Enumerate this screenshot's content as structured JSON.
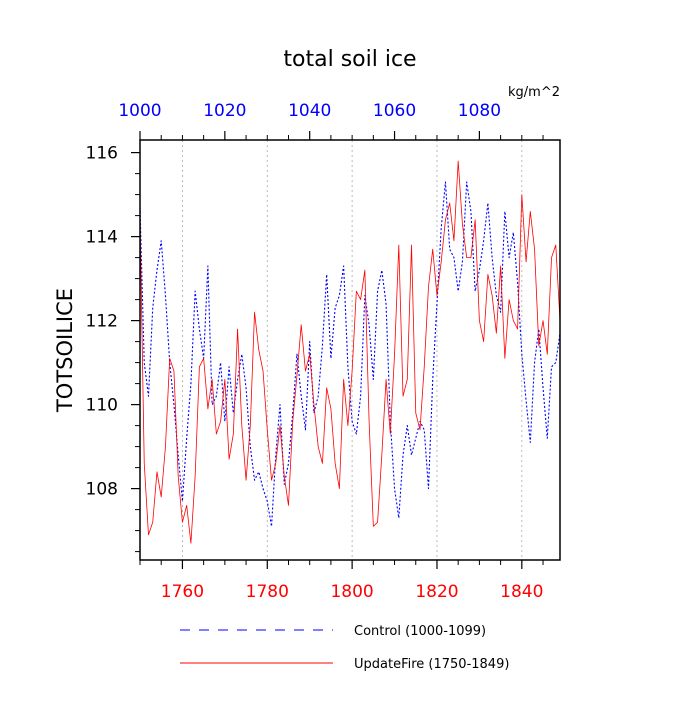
{
  "chart_data": {
    "type": "line",
    "title": "total soil ice",
    "ylabel": "TOTSOILICE",
    "units": "kg/m^2",
    "ylim": [
      106.3,
      116.3
    ],
    "y_ticks": [
      108,
      110,
      112,
      114,
      116
    ],
    "y_tick_labels": [
      "108",
      "110",
      "112",
      "114",
      "116"
    ],
    "grid": "vertical dotted at bottom-axis major ticks",
    "legend_position": "bottom",
    "colors": {
      "control": "#0000ff",
      "update_fire": "#ff0000",
      "top_axis_labels": "#0000ff",
      "bottom_axis_labels": "#ff0000",
      "grid": "#aaaaaa"
    },
    "top_axis": {
      "range": [
        1000,
        1099
      ],
      "ticks": [
        1000,
        1020,
        1040,
        1060,
        1080
      ],
      "tick_labels": [
        "1000",
        "1020",
        "1040",
        "1060",
        "1080"
      ]
    },
    "bottom_axis": {
      "range": [
        1750,
        1849
      ],
      "ticks": [
        1760,
        1780,
        1800,
        1820,
        1840
      ],
      "tick_labels": [
        "1760",
        "1780",
        "1800",
        "1820",
        "1840"
      ]
    },
    "series": [
      {
        "name": "Control (1000-1099)",
        "axis": "top",
        "style": "dashed",
        "x": [
          1000,
          1001,
          1002,
          1003,
          1004,
          1005,
          1006,
          1007,
          1008,
          1009,
          1010,
          1011,
          1012,
          1013,
          1014,
          1015,
          1016,
          1017,
          1018,
          1019,
          1020,
          1021,
          1022,
          1023,
          1024,
          1025,
          1026,
          1027,
          1028,
          1029,
          1030,
          1031,
          1032,
          1033,
          1034,
          1035,
          1036,
          1037,
          1038,
          1039,
          1040,
          1041,
          1042,
          1043,
          1044,
          1045,
          1046,
          1047,
          1048,
          1049,
          1050,
          1051,
          1052,
          1053,
          1054,
          1055,
          1056,
          1057,
          1058,
          1059,
          1060,
          1061,
          1062,
          1063,
          1064,
          1065,
          1066,
          1067,
          1068,
          1069,
          1070,
          1071,
          1072,
          1073,
          1074,
          1075,
          1076,
          1077,
          1078,
          1079,
          1080,
          1081,
          1082,
          1083,
          1084,
          1085,
          1086,
          1087,
          1088,
          1089,
          1090,
          1091,
          1092,
          1093,
          1094,
          1095,
          1096,
          1097,
          1098,
          1099
        ],
        "y": [
          114.7,
          111.0,
          110.2,
          112.3,
          113.2,
          113.9,
          112.6,
          111.0,
          110.0,
          108.8,
          107.7,
          109.2,
          110.5,
          112.7,
          111.8,
          111.1,
          113.3,
          110.0,
          110.2,
          111.0,
          109.6,
          110.9,
          109.8,
          110.6,
          111.2,
          110.4,
          109.0,
          108.2,
          108.4,
          108.0,
          107.7,
          107.1,
          108.8,
          110.0,
          108.1,
          108.6,
          109.8,
          111.2,
          110.2,
          109.4,
          111.5,
          109.8,
          110.2,
          111.4,
          113.1,
          111.1,
          112.3,
          112.6,
          113.3,
          110.9,
          109.6,
          109.3,
          110.2,
          112.6,
          111.9,
          110.6,
          112.7,
          113.2,
          112.4,
          109.6,
          108.0,
          107.3,
          108.8,
          109.5,
          108.8,
          109.2,
          109.6,
          109.4,
          108.0,
          110.6,
          112.4,
          114.2,
          115.3,
          113.7,
          113.5,
          112.7,
          113.4,
          115.3,
          114.6,
          112.7,
          113.2,
          113.9,
          114.8,
          113.5,
          112.6,
          112.2,
          114.6,
          113.5,
          114.1,
          112.9,
          111.2,
          110.1,
          109.1,
          111.0,
          111.8,
          110.4,
          109.2,
          110.9,
          111.0,
          111.7
        ]
      },
      {
        "name": "UpdateFire (1750-1849)",
        "axis": "bottom",
        "style": "solid",
        "x": [
          1750,
          1751,
          1752,
          1753,
          1754,
          1755,
          1756,
          1757,
          1758,
          1759,
          1760,
          1761,
          1762,
          1763,
          1764,
          1765,
          1766,
          1767,
          1768,
          1769,
          1770,
          1771,
          1772,
          1773,
          1774,
          1775,
          1776,
          1777,
          1778,
          1779,
          1780,
          1781,
          1782,
          1783,
          1784,
          1785,
          1786,
          1787,
          1788,
          1789,
          1790,
          1791,
          1792,
          1793,
          1794,
          1795,
          1796,
          1797,
          1798,
          1799,
          1800,
          1801,
          1802,
          1803,
          1804,
          1805,
          1806,
          1807,
          1808,
          1809,
          1810,
          1811,
          1812,
          1813,
          1814,
          1815,
          1816,
          1817,
          1818,
          1819,
          1820,
          1821,
          1822,
          1823,
          1824,
          1825,
          1826,
          1827,
          1828,
          1829,
          1830,
          1831,
          1832,
          1833,
          1834,
          1835,
          1836,
          1837,
          1838,
          1839,
          1840,
          1841,
          1842,
          1843,
          1844,
          1845,
          1846,
          1847,
          1848,
          1849
        ],
        "y": [
          114.5,
          108.6,
          106.9,
          107.2,
          108.4,
          107.8,
          109.0,
          111.1,
          110.8,
          108.3,
          107.2,
          107.6,
          106.7,
          108.3,
          110.9,
          111.1,
          109.9,
          110.6,
          109.3,
          109.6,
          110.6,
          108.7,
          109.3,
          111.8,
          109.5,
          108.2,
          109.5,
          112.2,
          111.3,
          110.8,
          109.4,
          108.2,
          108.6,
          109.5,
          108.3,
          107.6,
          109.6,
          110.7,
          111.9,
          110.8,
          111.2,
          110.0,
          109.0,
          108.6,
          110.4,
          109.9,
          108.6,
          108.0,
          110.6,
          109.5,
          110.8,
          112.7,
          112.5,
          113.2,
          109.6,
          107.1,
          107.2,
          108.8,
          110.6,
          109.3,
          111.2,
          113.8,
          110.2,
          110.6,
          113.8,
          109.8,
          109.4,
          110.9,
          112.8,
          113.7,
          112.6,
          113.4,
          114.4,
          114.8,
          113.9,
          115.8,
          114.3,
          113.5,
          113.5,
          114.4,
          112.0,
          111.5,
          113.1,
          112.6,
          111.7,
          113.3,
          111.1,
          112.5,
          112.0,
          111.8,
          115.0,
          113.4,
          114.6,
          113.7,
          111.4,
          112.0,
          111.2,
          113.5,
          113.8,
          112.0
        ]
      }
    ]
  }
}
